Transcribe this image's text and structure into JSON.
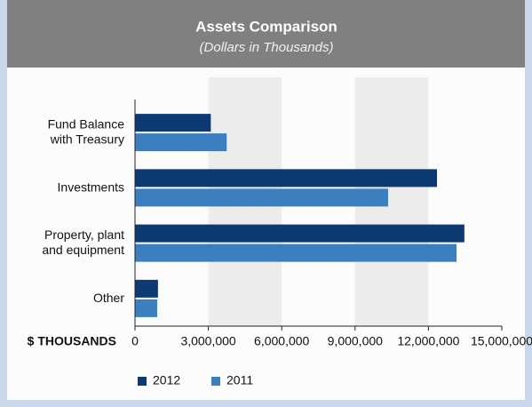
{
  "chart_data": {
    "type": "barh",
    "title": "Assets Comparison",
    "subtitle": "(Dollars in Thousands)",
    "categories": [
      [
        "Fund Balance",
        "with Treasury"
      ],
      [
        "Investments"
      ],
      [
        "Property, plant",
        "and equipment"
      ],
      [
        "Other"
      ]
    ],
    "series": [
      {
        "name": "2012",
        "color": "#0d3a73",
        "values": [
          3100000,
          12350000,
          13470000,
          940000
        ]
      },
      {
        "name": "2011",
        "color": "#3c7fc0",
        "values": [
          3750000,
          10350000,
          13150000,
          910000
        ]
      }
    ],
    "x_label": "$ THOUSANDS",
    "xlim": [
      0,
      15000000
    ],
    "xticks": [
      0,
      {
        "value": 3000000,
        "label": "3,000,000"
      },
      {
        "value": 6000000,
        "label": "6,000,000"
      },
      {
        "value": 9000000,
        "label": "9,000,000"
      },
      {
        "value": 12000000,
        "label": "12,000,000"
      },
      {
        "value": 15000000,
        "label": "15,000,000"
      }
    ],
    "alternating_bands": true,
    "legend": "bottom-left"
  }
}
